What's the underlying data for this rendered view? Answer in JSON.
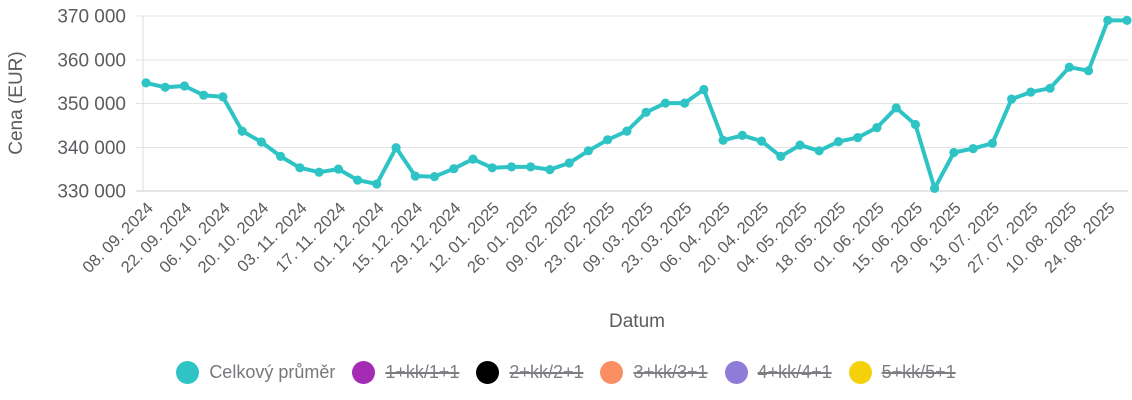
{
  "chart_data": {
    "type": "line",
    "title": "",
    "xlabel": "Datum",
    "ylabel": "Cena (EUR)",
    "ylim": [
      330000,
      370000
    ],
    "ytick_step": 10000,
    "ytick_labels": [
      "330 000",
      "340 000",
      "350 000",
      "360 000",
      "370 000"
    ],
    "grid": "horizontal",
    "legend_position": "bottom",
    "x_labels": [
      "08. 09. 2024",
      "22. 09. 2024",
      "06. 10. 2024",
      "20. 10. 2024",
      "03. 11. 2024",
      "17. 11. 2024",
      "01. 12. 2024",
      "15. 12. 2024",
      "29. 12. 2024",
      "12. 01. 2025",
      "26. 01. 2025",
      "09. 02. 2025",
      "23. 02. 2025",
      "09. 03. 2025",
      "23. 03. 2025",
      "06. 04. 2025",
      "20. 04. 2025",
      "04. 05. 2025",
      "18. 05. 2025",
      "01. 06. 2025",
      "15. 06. 2025",
      "29. 06. 2025",
      "13. 07. 2025",
      "27. 07. 2025",
      "10. 08. 2025",
      "24. 08. 2025"
    ],
    "x_label_every": 2,
    "series": [
      {
        "name": "Celkový průměr",
        "color": "#2ec3c5",
        "values": [
          354700,
          353700,
          354000,
          351900,
          351500,
          343700,
          341200,
          337900,
          335300,
          334300,
          335000,
          332500,
          331600,
          339900,
          333400,
          333300,
          335100,
          337300,
          335300,
          335500,
          335500,
          334900,
          336400,
          339200,
          341700,
          343700,
          348000,
          350100,
          350100,
          353200,
          341600,
          342700,
          341400,
          337900,
          340500,
          339200,
          341300,
          342200,
          344500,
          349000,
          345200,
          330600,
          338800,
          339700,
          340900,
          351000,
          352600,
          353500,
          358300,
          357500,
          369000,
          369000
        ]
      }
    ]
  },
  "legend": {
    "items": [
      {
        "label": "Celkový průměr",
        "color": "#2ec3c5",
        "active": true
      },
      {
        "label": "1+kk/1+1",
        "color": "#a42cb5",
        "active": false
      },
      {
        "label": "2+kk/2+1",
        "color": "#000000",
        "active": false
      },
      {
        "label": "3+kk/3+1",
        "color": "#f98f63",
        "active": false
      },
      {
        "label": "4+kk/4+1",
        "color": "#8f7cd9",
        "active": false
      },
      {
        "label": "5+kk/5+1",
        "color": "#f4d10a",
        "active": false
      }
    ]
  }
}
